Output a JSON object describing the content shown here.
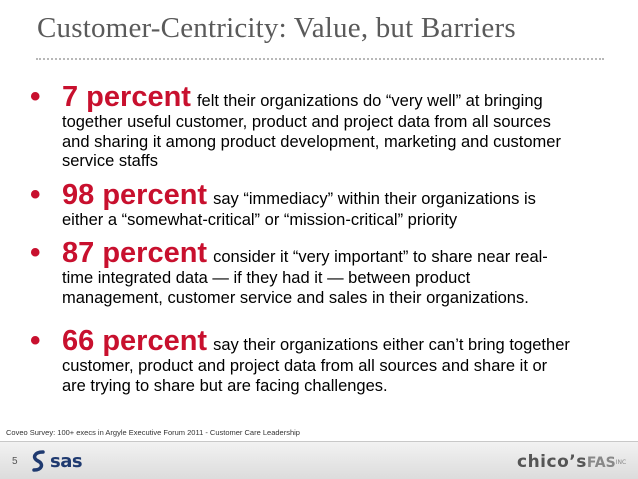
{
  "title": "Customer-Centricity: Value, but Barriers",
  "bullets": [
    {
      "highlight": "7 percent",
      "lead": "felt their organizations do “very well” at bringing",
      "lines": [
        "together useful customer, product and project data from all sources",
        "and sharing it among product development, marketing and customer",
        "service staffs"
      ]
    },
    {
      "highlight": "98 percent",
      "lead": "say “immediacy” within their organizations is",
      "lines": [
        "either a “somewhat-critical” or “mission-critical” priority"
      ]
    },
    {
      "highlight": "87 percent",
      "lead": "consider it “very important” to share near real-",
      "lines": [
        "time integrated data — if they had it — between product",
        "management, customer service and sales in their organizations."
      ]
    },
    {
      "highlight": "66 percent",
      "lead": "say their organizations either can’t bring together",
      "lines": [
        "customer, product and project data from all sources and share it or",
        "are trying to share but are facing challenges."
      ]
    }
  ],
  "source": "Coveo Survey: 100+ execs in Argyle Executive Forum 2011 - Customer Care Leadership",
  "footer": {
    "page_number": "5",
    "sas_logo": "sas",
    "chicos_name": "chico’s",
    "chicos_fas": "FAS",
    "chicos_inc": "INC"
  },
  "colors": {
    "accent": "#c8102e",
    "title": "#5a5a5a",
    "sas_blue": "#1f3a70"
  }
}
